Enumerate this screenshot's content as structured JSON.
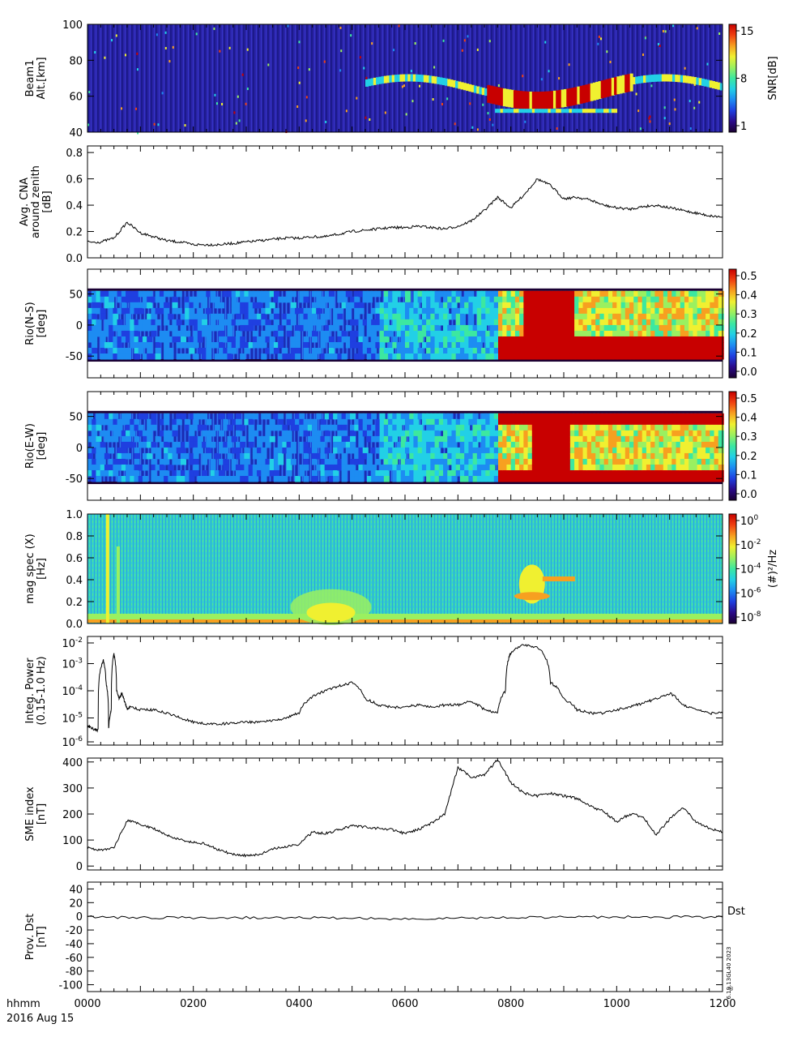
{
  "footer": {
    "time_label": "hhmm",
    "date_label": "2016 Aug 15",
    "stamp": "6.19.13GL40 2023",
    "stamp_mark": "®"
  },
  "x_ticks": [
    "0000",
    "0200",
    "0400",
    "0600",
    "0800",
    "1000",
    "1200"
  ],
  "colormap": [
    "#1a0033",
    "#2a0a8a",
    "#1f3fe0",
    "#1d8cf2",
    "#22d0e6",
    "#3ce8a0",
    "#9af060",
    "#f0f030",
    "#f7a020",
    "#f04010",
    "#c80000"
  ],
  "chart_data": [
    {
      "type": "heatmap",
      "ylabel": [
        "Beam1",
        "Alt.[km]"
      ],
      "yticks": [
        "100",
        "80",
        "60",
        "40"
      ],
      "ylim": [
        40,
        100
      ],
      "colorbar_label": "SNR[dB]",
      "colorbar_ticks": [
        "15",
        "8",
        "1"
      ],
      "zlim": [
        1,
        15
      ]
    },
    {
      "type": "line",
      "ylabel": [
        "Avg. CNA",
        "around zenith",
        "[dB]"
      ],
      "yticks": [
        "0.8",
        "0.6",
        "0.4",
        "0.2",
        "0.0"
      ],
      "ylim": [
        0,
        0.85
      ],
      "x_hours": [
        0,
        0.25,
        0.5,
        0.75,
        1.0,
        1.25,
        1.5,
        1.75,
        2.0,
        2.25,
        2.5,
        2.75,
        3.0,
        3.25,
        3.5,
        3.75,
        4.0,
        4.25,
        4.5,
        4.75,
        5.0,
        5.25,
        5.5,
        5.75,
        6.0,
        6.25,
        6.5,
        6.75,
        7.0,
        7.25,
        7.5,
        7.75,
        8.0,
        8.25,
        8.5,
        8.75,
        9.0,
        9.25,
        9.5,
        9.75,
        10.0,
        10.25,
        10.5,
        10.75,
        11.0,
        11.25,
        11.5,
        11.75,
        12.0
      ],
      "values": [
        0.12,
        0.12,
        0.15,
        0.27,
        0.19,
        0.16,
        0.13,
        0.12,
        0.1,
        0.1,
        0.1,
        0.11,
        0.12,
        0.13,
        0.14,
        0.15,
        0.15,
        0.16,
        0.16,
        0.18,
        0.2,
        0.21,
        0.22,
        0.23,
        0.23,
        0.24,
        0.23,
        0.22,
        0.24,
        0.28,
        0.36,
        0.46,
        0.38,
        0.48,
        0.6,
        0.55,
        0.45,
        0.46,
        0.44,
        0.4,
        0.38,
        0.37,
        0.39,
        0.4,
        0.38,
        0.36,
        0.34,
        0.32,
        0.31
      ]
    },
    {
      "type": "heatmap",
      "ylabel": [
        "Rio(N-S)",
        "[deg]"
      ],
      "yticks": [
        "50",
        "0",
        "-50"
      ],
      "ylim": [
        -85,
        90
      ],
      "band": [
        -55,
        55
      ],
      "colorbar_ticks": [
        "0.5",
        "0.4",
        "0.3",
        "0.2",
        "0.1",
        "0.0"
      ],
      "zlim": [
        0,
        0.58
      ]
    },
    {
      "type": "heatmap",
      "ylabel": [
        "Rio(E-W)",
        "[deg]"
      ],
      "yticks": [
        "50",
        "0",
        "-50"
      ],
      "ylim": [
        -85,
        90
      ],
      "band": [
        -55,
        55
      ],
      "colorbar_ticks": [
        "0.5",
        "0.4",
        "0.3",
        "0.2",
        "0.1",
        "0.0"
      ],
      "zlim": [
        0,
        0.58
      ]
    },
    {
      "type": "heatmap",
      "ylabel": [
        "mag spec (X)",
        "[Hz]"
      ],
      "yticks": [
        "1.0",
        "0.8",
        "0.6",
        "0.4",
        "0.2",
        "0.0"
      ],
      "ylim": [
        0,
        1.0
      ],
      "colorbar_label": "(#)²/Hz",
      "colorbar_ticks": [
        {
          "base": "10",
          "exp": "0"
        },
        {
          "base": "10",
          "exp": "-2"
        },
        {
          "base": "10",
          "exp": "-4"
        },
        {
          "base": "10",
          "exp": "-6"
        },
        {
          "base": "10",
          "exp": "-8"
        }
      ]
    },
    {
      "type": "line",
      "ylabel": [
        "Integ. Power",
        "(0.15-1.0 Hz)"
      ],
      "yticks": [
        {
          "base": "10",
          "exp": "-2"
        },
        {
          "base": "10",
          "exp": "-3"
        },
        {
          "base": "10",
          "exp": "-4"
        },
        {
          "base": "10",
          "exp": "-5"
        },
        {
          "base": "10",
          "exp": "-6"
        }
      ],
      "log_scale": true,
      "ylim": [
        1e-06,
        0.01
      ],
      "x_hours": [
        0,
        0.1,
        0.2,
        0.3,
        0.35,
        0.4,
        0.45,
        0.5,
        0.55,
        0.6,
        0.65,
        0.7,
        0.75,
        0.8,
        1.0,
        1.25,
        1.5,
        1.75,
        2.0,
        2.25,
        2.5,
        2.75,
        3.0,
        3.25,
        3.5,
        3.75,
        4.0,
        4.25,
        4.5,
        4.75,
        5.0,
        5.25,
        5.5,
        5.75,
        6.0,
        6.25,
        6.5,
        6.75,
        7.0,
        7.25,
        7.5,
        7.75,
        7.9,
        8.0,
        8.25,
        8.5,
        8.75,
        9.0,
        9.25,
        9.5,
        9.75,
        10.0,
        10.25,
        10.5,
        10.75,
        11.0,
        11.25,
        11.5,
        11.75,
        12.0
      ],
      "values": [
        5e-06,
        4e-06,
        3.5e-06,
        0.0013,
        0.0002,
        4e-06,
        2e-05,
        0.0022,
        0.0001,
        5e-05,
        8e-05,
        4e-05,
        2e-05,
        2.5e-05,
        2e-05,
        2e-05,
        1.5e-05,
        1e-05,
        7e-06,
        6e-06,
        6e-06,
        6.5e-06,
        7e-06,
        7e-06,
        8e-06,
        1e-05,
        1.5e-05,
        6e-05,
        0.0001,
        0.00015,
        0.0002,
        5e-05,
        3e-05,
        2.5e-05,
        2.5e-05,
        3e-05,
        2.5e-05,
        3e-05,
        3e-05,
        4e-05,
        2e-05,
        1.5e-05,
        0.0001,
        0.0025,
        0.005,
        0.004,
        0.0002,
        5e-05,
        2e-05,
        1.5e-05,
        1.5e-05,
        2e-05,
        2.5e-05,
        3.5e-05,
        5e-05,
        8e-05,
        3e-05,
        2e-05,
        1.5e-05,
        1.5e-05
      ]
    },
    {
      "type": "line",
      "ylabel": [
        "SME index",
        "[nT]"
      ],
      "yticks": [
        "400",
        "300",
        "200",
        "100",
        "0"
      ],
      "ylim": [
        -15,
        415
      ],
      "x_hours": [
        0,
        0.25,
        0.5,
        0.75,
        1.0,
        1.25,
        1.5,
        1.75,
        2.0,
        2.25,
        2.5,
        2.75,
        3.0,
        3.25,
        3.5,
        3.75,
        4.0,
        4.25,
        4.5,
        4.75,
        5.0,
        5.25,
        5.5,
        5.75,
        6.0,
        6.25,
        6.5,
        6.75,
        7.0,
        7.25,
        7.5,
        7.75,
        8.0,
        8.25,
        8.5,
        8.75,
        9.0,
        9.25,
        9.5,
        9.75,
        10.0,
        10.25,
        10.5,
        10.75,
        11.0,
        11.25,
        11.5,
        11.75,
        12.0
      ],
      "values": [
        70,
        60,
        70,
        175,
        160,
        145,
        120,
        100,
        90,
        85,
        60,
        45,
        40,
        45,
        65,
        75,
        85,
        130,
        125,
        140,
        155,
        150,
        145,
        140,
        125,
        140,
        165,
        200,
        380,
        340,
        350,
        410,
        320,
        280,
        270,
        280,
        270,
        260,
        230,
        210,
        170,
        200,
        190,
        120,
        180,
        225,
        170,
        145,
        130
      ]
    },
    {
      "type": "line",
      "ylabel": [
        "Prov. Dst",
        "[nT]"
      ],
      "yticks": [
        "40",
        "20",
        "0",
        "-20",
        "-40",
        "-60",
        "-80",
        "-100"
      ],
      "ylim": [
        -110,
        50
      ],
      "legend": "Dst",
      "x_hours": [
        0,
        1,
        2,
        3,
        4,
        5,
        6,
        7,
        8,
        9,
        10,
        11,
        12
      ],
      "values": [
        -1,
        -2,
        -2,
        -2,
        -2,
        -3,
        -4,
        -3,
        -2,
        -1,
        -1,
        -1,
        -1
      ]
    }
  ]
}
